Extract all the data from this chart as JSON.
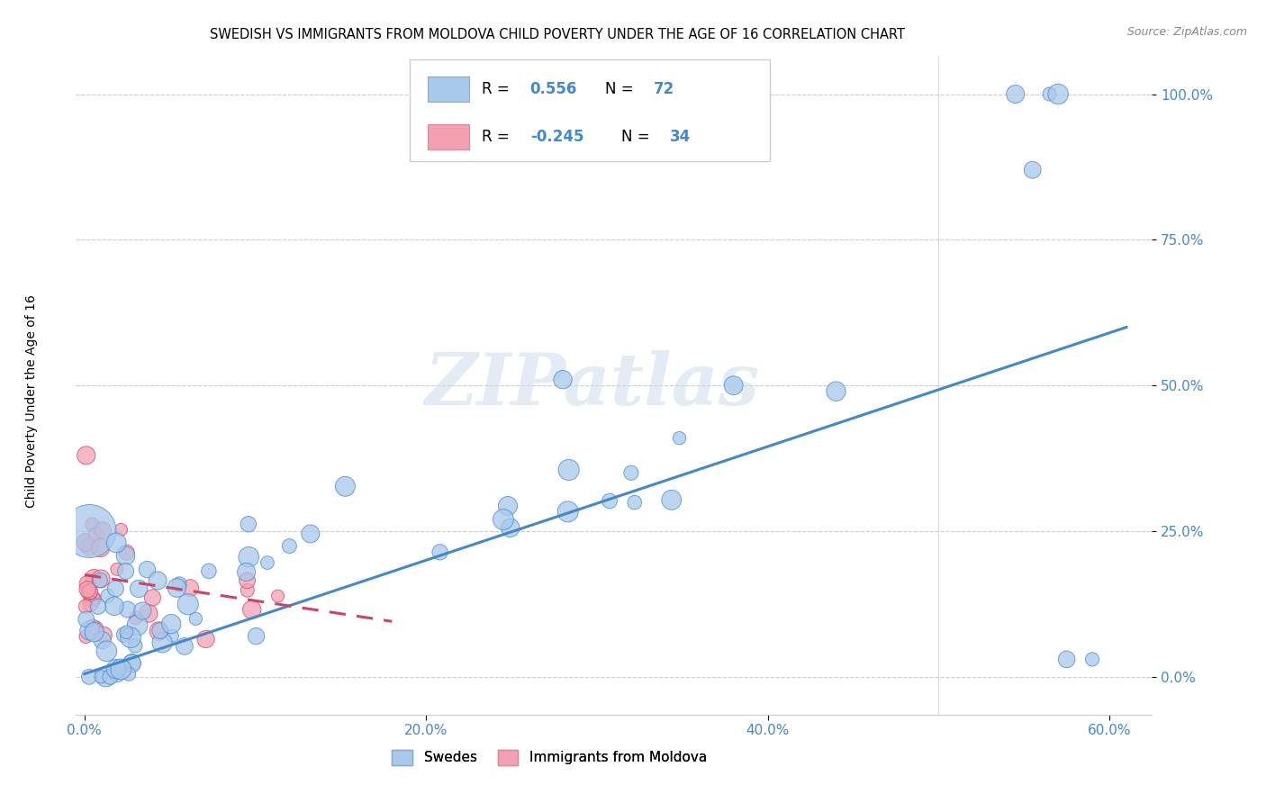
{
  "title": "SWEDISH VS IMMIGRANTS FROM MOLDOVA CHILD POVERTY UNDER THE AGE OF 16 CORRELATION CHART",
  "source": "Source: ZipAtlas.com",
  "ylabel": "Child Poverty Under the Age of 16",
  "color_blue": "#A8C8EC",
  "color_pink": "#F4A0B0",
  "color_blue_dark": "#4488CC",
  "color_pink_dark": "#CC4466",
  "color_blue_line": "#4488CC",
  "color_pink_line": "#CC4466",
  "watermark": "ZIPatlas",
  "background_color": "#FFFFFF",
  "grid_color": "#CCCCCC"
}
